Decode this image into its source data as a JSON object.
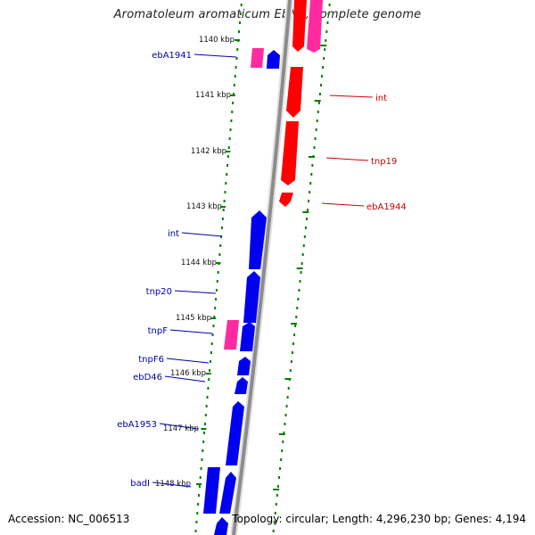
{
  "title": "Aromatoleum aromaticum EbN1, complete genome",
  "footer": {
    "accession": "Accession: NC_006513",
    "summary": "Topology: circular; Length: 4,296,230 bp; Genes: 4,194"
  },
  "colors": {
    "backbone": "#8c8c8c",
    "forward_gene": "#0000ee",
    "reverse_gene": "#ff0000",
    "rna_forward": "#ff2aa0",
    "rna_reverse": "#ff2aa0",
    "tick": "#008000",
    "forward_label": "#0000aa",
    "reverse_label": "#cc0000"
  },
  "ticks": [
    "1140 kbp",
    "1141 kbp",
    "1142 kbp",
    "1143 kbp",
    "1144 kbp",
    "1145 kbp",
    "1146 kbp",
    "1147 kbp",
    "1148 kbp"
  ],
  "gene_labels": {
    "forward": [
      "ebA1941",
      "int",
      "tnp20",
      "tnpF",
      "tnpF6",
      "ebD46",
      "ebA1953",
      "badI"
    ],
    "reverse": [
      "int",
      "tnp19",
      "ebA1944"
    ]
  }
}
